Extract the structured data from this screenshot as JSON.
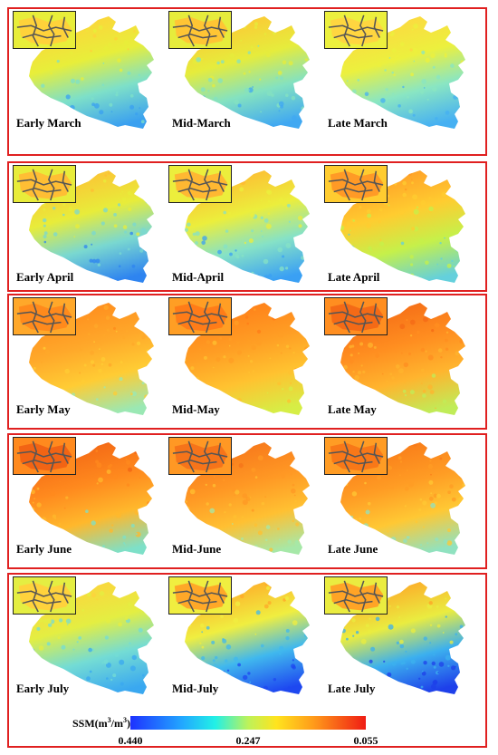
{
  "rows": [
    {
      "panels": [
        {
          "label": "Early March",
          "scheme": [
            "#ffd23a",
            "#e8ee3a",
            "#7ee0c8",
            "#3aa0f0"
          ]
        },
        {
          "label": "Mid-March",
          "scheme": [
            "#ffc534",
            "#e6ec3c",
            "#84e2c0",
            "#40a8f2"
          ]
        },
        {
          "label": "Late March",
          "scheme": [
            "#ffd640",
            "#ecf03e",
            "#8ae6c2",
            "#46b0f2"
          ]
        }
      ]
    },
    {
      "panels": [
        {
          "label": "Early April",
          "scheme": [
            "#ffbe34",
            "#e8ec3a",
            "#7ad8d0",
            "#2e84f0"
          ]
        },
        {
          "label": "Mid-April",
          "scheme": [
            "#ffb832",
            "#ecee3c",
            "#86e2c6",
            "#3aa0f4"
          ]
        },
        {
          "label": "Late April",
          "scheme": [
            "#ff9a26",
            "#ffcc30",
            "#c6f04a",
            "#64d0dc"
          ]
        }
      ]
    },
    {
      "panels": [
        {
          "label": "Early May",
          "scheme": [
            "#ff8a1c",
            "#ffa82a",
            "#ffcc34",
            "#9ae8b4"
          ]
        },
        {
          "label": "Mid-May",
          "scheme": [
            "#ff7c18",
            "#ff9e24",
            "#ffc230",
            "#d6ee46"
          ]
        },
        {
          "label": "Late May",
          "scheme": [
            "#f46a16",
            "#ff8e20",
            "#ffb42e",
            "#c0ec58"
          ]
        }
      ]
    },
    {
      "panels": [
        {
          "label": "Early June",
          "scheme": [
            "#f26414",
            "#ff8a1e",
            "#ffb82c",
            "#7ee0c8"
          ]
        },
        {
          "label": "Mid-June",
          "scheme": [
            "#f6741a",
            "#ff9824",
            "#ffc032",
            "#a6e8a8"
          ]
        },
        {
          "label": "Late June",
          "scheme": [
            "#f87818",
            "#ff9c24",
            "#ffc834",
            "#90e2c0"
          ]
        }
      ]
    },
    {
      "panels": [
        {
          "label": "Early July",
          "scheme": [
            "#ffd23c",
            "#e4ee42",
            "#74dcd4",
            "#3aa8f0"
          ]
        },
        {
          "label": "Mid-July",
          "scheme": [
            "#ffa828",
            "#f0ee40",
            "#40b8ee",
            "#1e48f0"
          ]
        },
        {
          "label": "Late July",
          "scheme": [
            "#ffa426",
            "#eaec40",
            "#3cb0ee",
            "#1e40ea"
          ]
        }
      ]
    }
  ],
  "legend": {
    "title_prefix": "SSM(m",
    "title_sup1": "3",
    "title_mid": "/m",
    "title_sup2": "3",
    "title_suffix": ")",
    "tick_left": "0.440",
    "tick_mid": "0.247",
    "tick_right": "0.055",
    "tick_values": [
      0.44,
      0.247,
      0.055
    ],
    "range": [
      0.44,
      0.055
    ]
  },
  "colors": {
    "frame": "#e02020",
    "outline": "#555555"
  }
}
